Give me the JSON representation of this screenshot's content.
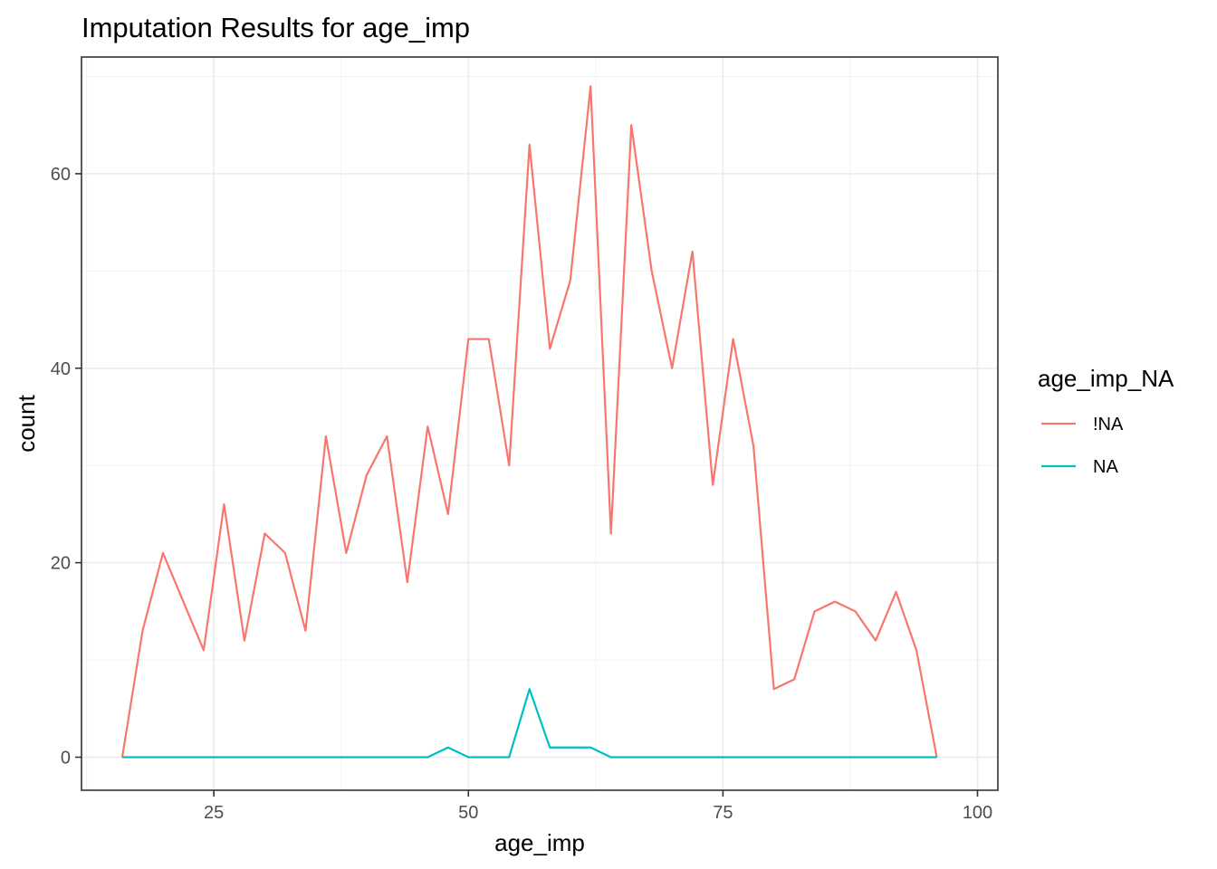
{
  "chart_data": {
    "type": "line",
    "title": "Imputation Results for age_imp",
    "xlabel": "age_imp",
    "ylabel": "count",
    "xlim": [
      12,
      102
    ],
    "ylim": [
      -3.4,
      72
    ],
    "x_ticks": [
      25,
      50,
      75,
      100
    ],
    "y_ticks": [
      0,
      20,
      40,
      60
    ],
    "x_minor": [
      12.5,
      37.5,
      62.5,
      87.5
    ],
    "y_minor": [
      10,
      30,
      50,
      70
    ],
    "grid": true,
    "legend": {
      "title": "age_imp_NA",
      "position": "right"
    },
    "series": [
      {
        "name": "!NA",
        "color": "#F8766D",
        "x": [
          16,
          18,
          20,
          22,
          24,
          26,
          28,
          30,
          32,
          34,
          36,
          38,
          40,
          42,
          44,
          46,
          48,
          50,
          52,
          54,
          56,
          58,
          60,
          62,
          64,
          66,
          68,
          70,
          72,
          74,
          76,
          78,
          80,
          82,
          84,
          86,
          88,
          90,
          92,
          94,
          96
        ],
        "y": [
          0,
          13,
          21,
          16,
          11,
          26,
          12,
          23,
          21,
          13,
          33,
          21,
          29,
          33,
          18,
          34,
          25,
          43,
          43,
          30,
          63,
          42,
          49,
          69,
          23,
          65,
          50,
          40,
          52,
          28,
          43,
          32,
          7,
          8,
          15,
          16,
          15,
          12,
          17,
          11,
          0
        ]
      },
      {
        "name": "NA",
        "color": "#00BFC4",
        "x": [
          16,
          18,
          20,
          22,
          24,
          26,
          28,
          30,
          32,
          34,
          36,
          38,
          40,
          42,
          44,
          46,
          48,
          50,
          52,
          54,
          56,
          58,
          60,
          62,
          64,
          66,
          68,
          70,
          72,
          74,
          76,
          78,
          80,
          82,
          84,
          86,
          88,
          90,
          92,
          94,
          96
        ],
        "y": [
          0,
          0,
          0,
          0,
          0,
          0,
          0,
          0,
          0,
          0,
          0,
          0,
          0,
          0,
          0,
          0,
          1,
          0,
          0,
          0,
          7,
          1,
          1,
          1,
          0,
          0,
          0,
          0,
          0,
          0,
          0,
          0,
          0,
          0,
          0,
          0,
          0,
          0,
          0,
          0,
          0
        ]
      }
    ]
  }
}
